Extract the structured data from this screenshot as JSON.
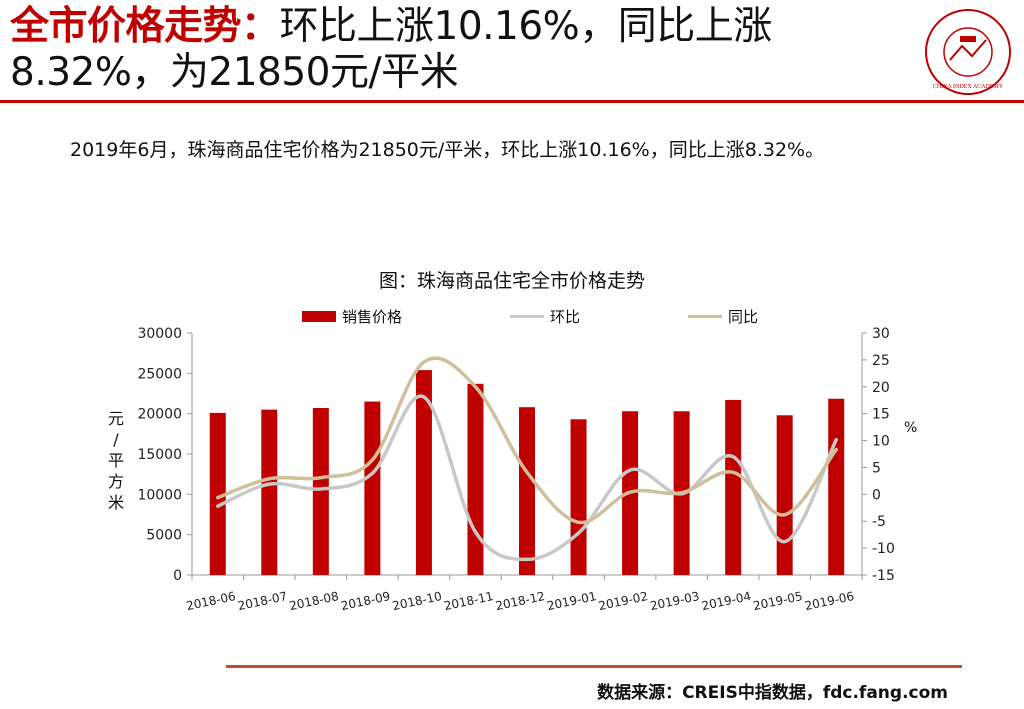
{
  "header": {
    "title_highlight": "全市价格走势：",
    "title_rest": "环比上涨10.16%，同比上涨8.32%，为21850元/平米",
    "logo_text": "CHINA INDEX ACADEMY"
  },
  "summary": "2019年6月，珠海商品住宅价格为21850元/平米，环比上涨10.16%，同比上涨8.32%。",
  "chart_data": {
    "type": "bar",
    "title": "图：珠海商品住宅全市价格走势",
    "categories": [
      "2018-06",
      "2018-07",
      "2018-08",
      "2018-09",
      "2018-10",
      "2018-11",
      "2018-12",
      "2019-01",
      "2019-02",
      "2019-03",
      "2019-04",
      "2019-05",
      "2019-06"
    ],
    "ylabel": "元/平方米",
    "y2label": "%",
    "ylim": [
      0,
      30000
    ],
    "yticks": [
      0,
      5000,
      10000,
      15000,
      20000,
      25000,
      30000
    ],
    "y2lim": [
      -15,
      30
    ],
    "y2ticks": [
      -15,
      -10,
      -5,
      0,
      5,
      10,
      15,
      20,
      25,
      30
    ],
    "legend_position": "top",
    "series": [
      {
        "name": "销售价格",
        "kind": "bar",
        "axis": "left",
        "color": "#c00000",
        "values": [
          20100,
          20500,
          20700,
          21500,
          25400,
          23700,
          20800,
          19300,
          20300,
          20300,
          21700,
          19800,
          21850
        ]
      },
      {
        "name": "环比",
        "kind": "line",
        "axis": "right",
        "color": "#c8c8c8",
        "values": [
          -2.2,
          1.9,
          1.0,
          3.9,
          18.1,
          -7.0,
          -12.1,
          -7.2,
          4.5,
          0.1,
          7.0,
          -8.8,
          10.16
        ]
      },
      {
        "name": "同比",
        "kind": "line",
        "axis": "right",
        "color": "#cfc09a",
        "values": [
          -0.6,
          2.9,
          3.1,
          6.4,
          24.6,
          20.0,
          4.1,
          -5.2,
          0.4,
          0.3,
          4.1,
          -3.8,
          8.32
        ]
      }
    ]
  },
  "footer": {
    "source": "数据来源：CREIS中指数据，fdc.fang.com"
  }
}
